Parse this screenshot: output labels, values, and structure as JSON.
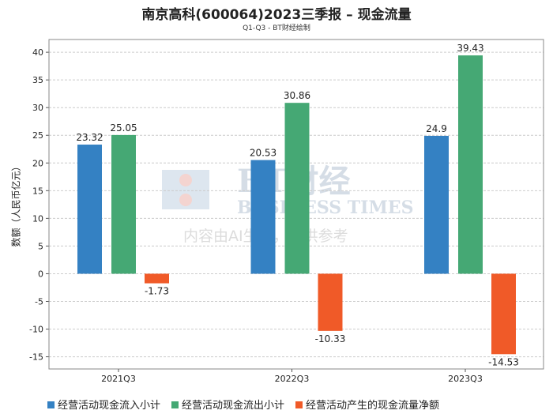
{
  "chart_data": {
    "type": "bar",
    "title": "南京高科(600064)2023三季报 – 现金流量",
    "subtitle": "Q1-Q3 - BT财经绘制",
    "ylabel": "数额（人民币亿元）",
    "xlabel": "",
    "categories": [
      "2021Q3",
      "2022Q3",
      "2023Q3"
    ],
    "ylim": [
      -17.2,
      42.3
    ],
    "yticks": [
      -15,
      -10,
      -5,
      0,
      5,
      10,
      15,
      20,
      25,
      30,
      35,
      40
    ],
    "grid": true,
    "legend_placement": "bottom",
    "series": [
      {
        "name": "经营活动现金流入小计",
        "color": "#3481c3",
        "values": [
          23.32,
          20.53,
          24.9
        ],
        "labels": [
          "23.32",
          "20.53",
          "24.9"
        ]
      },
      {
        "name": "经营活动现金流出小计",
        "color": "#45a874",
        "values": [
          25.05,
          30.86,
          39.43
        ],
        "labels": [
          "25.05",
          "30.86",
          "39.43"
        ]
      },
      {
        "name": "经营活动产生的现金流量净额",
        "color": "#f05a28",
        "values": [
          -1.73,
          -10.33,
          -14.53
        ],
        "labels": [
          "-1.73",
          "-10.33",
          "-14.53"
        ]
      }
    ]
  },
  "watermark": {
    "logo": "BT财经",
    "en": "BUSINESS TIMES",
    "note": "内容由AI生成，仅供参考"
  }
}
